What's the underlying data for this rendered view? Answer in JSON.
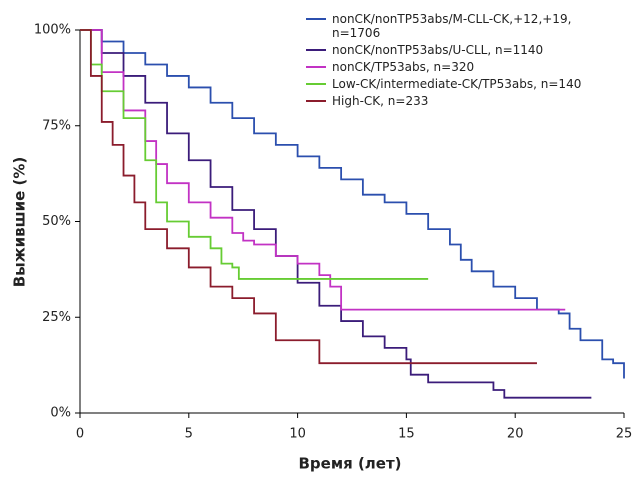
{
  "chart_data": {
    "type": "step-line",
    "xlabel": "Время (лет)",
    "ylabel": "Выжившие (%)",
    "xlim": [
      0,
      25
    ],
    "xticks": [
      0,
      5,
      10,
      15,
      20,
      25
    ],
    "ylim": [
      0,
      100
    ],
    "yticks": [
      {
        "value": 0,
        "label": "0%"
      },
      {
        "value": 25,
        "label": "25%"
      },
      {
        "value": 50,
        "label": "50%"
      },
      {
        "value": 75,
        "label": "75%"
      },
      {
        "value": 100,
        "label": "100%"
      }
    ],
    "series": [
      {
        "name": "nonCK/nonTP53abs/M-CLL-CK,+12,+19, n=1706",
        "color": "#2b4fae",
        "x": [
          0,
          1,
          2,
          3,
          4,
          5,
          6,
          7,
          8,
          9,
          10,
          11,
          12,
          13,
          14,
          15,
          16,
          17,
          17.5,
          18,
          19,
          20,
          21,
          22,
          22.5,
          23,
          24,
          24.5,
          25
        ],
        "values": [
          100,
          97,
          94,
          91,
          88,
          85,
          81,
          77,
          73,
          70,
          67,
          64,
          61,
          57,
          55,
          52,
          48,
          44,
          40,
          37,
          33,
          30,
          27,
          26,
          22,
          19,
          14,
          13,
          9
        ]
      },
      {
        "name": "nonCK/nonTP53abs/U-CLL, n=1140",
        "color": "#3b1c7a",
        "x": [
          0,
          1,
          2,
          3,
          4,
          5,
          6,
          7,
          8,
          9,
          10,
          11,
          12,
          13,
          14,
          15,
          15.2,
          16,
          19,
          19.5,
          23.5
        ],
        "values": [
          100,
          94,
          88,
          81,
          73,
          66,
          59,
          53,
          48,
          41,
          34,
          28,
          24,
          20,
          17,
          14,
          10,
          8,
          6,
          4,
          4
        ]
      },
      {
        "name": "nonCK/TP53abs, n=320",
        "color": "#c232c4",
        "x": [
          0,
          1,
          2,
          3,
          3.5,
          4,
          5,
          6,
          7,
          7.5,
          8,
          9,
          10,
          11,
          11.5,
          12,
          22.3
        ],
        "values": [
          100,
          89,
          79,
          71,
          65,
          60,
          55,
          51,
          47,
          45,
          44,
          41,
          39,
          36,
          33,
          27,
          27
        ]
      },
      {
        "name": "Low-CK/intermediate-CK/TP53abs, n=140",
        "color": "#66cc33",
        "x": [
          0,
          0.5,
          1,
          2,
          3,
          3.5,
          4,
          5,
          6,
          6.5,
          7,
          7.3,
          16
        ],
        "values": [
          100,
          91,
          84,
          77,
          66,
          55,
          50,
          46,
          43,
          39,
          38,
          35,
          35
        ]
      },
      {
        "name": "High-CK, n=233",
        "color": "#8b1c2c",
        "x": [
          0,
          0.5,
          1,
          1.5,
          2,
          2.5,
          3,
          4,
          5,
          6,
          7,
          8,
          9,
          10,
          11,
          21
        ],
        "values": [
          100,
          88,
          76,
          70,
          62,
          55,
          48,
          43,
          38,
          33,
          30,
          26,
          19,
          19,
          13,
          13
        ]
      }
    ]
  }
}
